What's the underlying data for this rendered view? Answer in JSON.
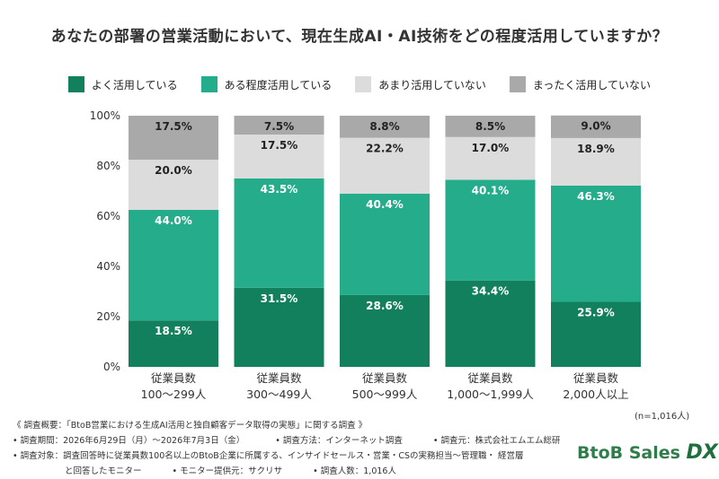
{
  "title": "あなたの部署の営業活動において、現在生成AI・AI技術をどの程度活用していますか？",
  "legend": [
    {
      "label": "よく活用している",
      "color": "#12805c"
    },
    {
      "label": "ある程度活用している",
      "color": "#25ad8b"
    },
    {
      "label": "あまり活用していない",
      "color": "#dcdcdc"
    },
    {
      "label": "まったく活用していない",
      "color": "#a9a9a9"
    }
  ],
  "chart_data": {
    "type": "bar",
    "stacked": true,
    "categories": [
      [
        "従業員数",
        "100〜299人"
      ],
      [
        "従業員数",
        "300〜499人"
      ],
      [
        "従業員数",
        "500〜999人"
      ],
      [
        "従業員数",
        "1,000〜1,999人"
      ],
      [
        "従業員数",
        "2,000人以上"
      ]
    ],
    "series": [
      {
        "name": "よく活用している",
        "values": [
          18.5,
          31.5,
          28.6,
          34.4,
          25.9
        ],
        "color": "#12805c"
      },
      {
        "name": "ある程度活用している",
        "values": [
          44.0,
          43.5,
          40.4,
          40.1,
          46.3
        ],
        "color": "#25ad8b"
      },
      {
        "name": "あまり活用していない",
        "values": [
          20.0,
          17.5,
          22.2,
          17.0,
          18.9
        ],
        "color": "#dcdcdc"
      },
      {
        "name": "まったく活用していない",
        "values": [
          17.5,
          7.5,
          8.8,
          8.5,
          9.0
        ],
        "color": "#a9a9a9"
      }
    ],
    "ylim": [
      0,
      100
    ],
    "yticks": [
      "0%",
      "20%",
      "40%",
      "60%",
      "80%",
      "100%"
    ],
    "grid": false
  },
  "n_note": "(n=1,016人)",
  "footer": {
    "line1": "《 調査概要：「BtoB営業における生成AI活用と独自顧客データ取得の実態」に関する調査 》",
    "period": "• 調査期間：2026年6月29日（月）〜2026年7月3日（金）",
    "method": "• 調査方法：インターネット調査",
    "org": "• 調査元：株式会社エムエム総研",
    "target1": "• 調査対象：調査回答時に従業員数100名以上のBtoB企業に所属する、インサイドセールス・営業・CSの実務担当〜管理職・ 経営層",
    "target2": "と回答したモニター",
    "provider": "• モニター提供元：サクリサ",
    "count": "• 調査人数：1,016人"
  },
  "logo": {
    "main": "BtoB Sales ",
    "accent": "DX"
  }
}
